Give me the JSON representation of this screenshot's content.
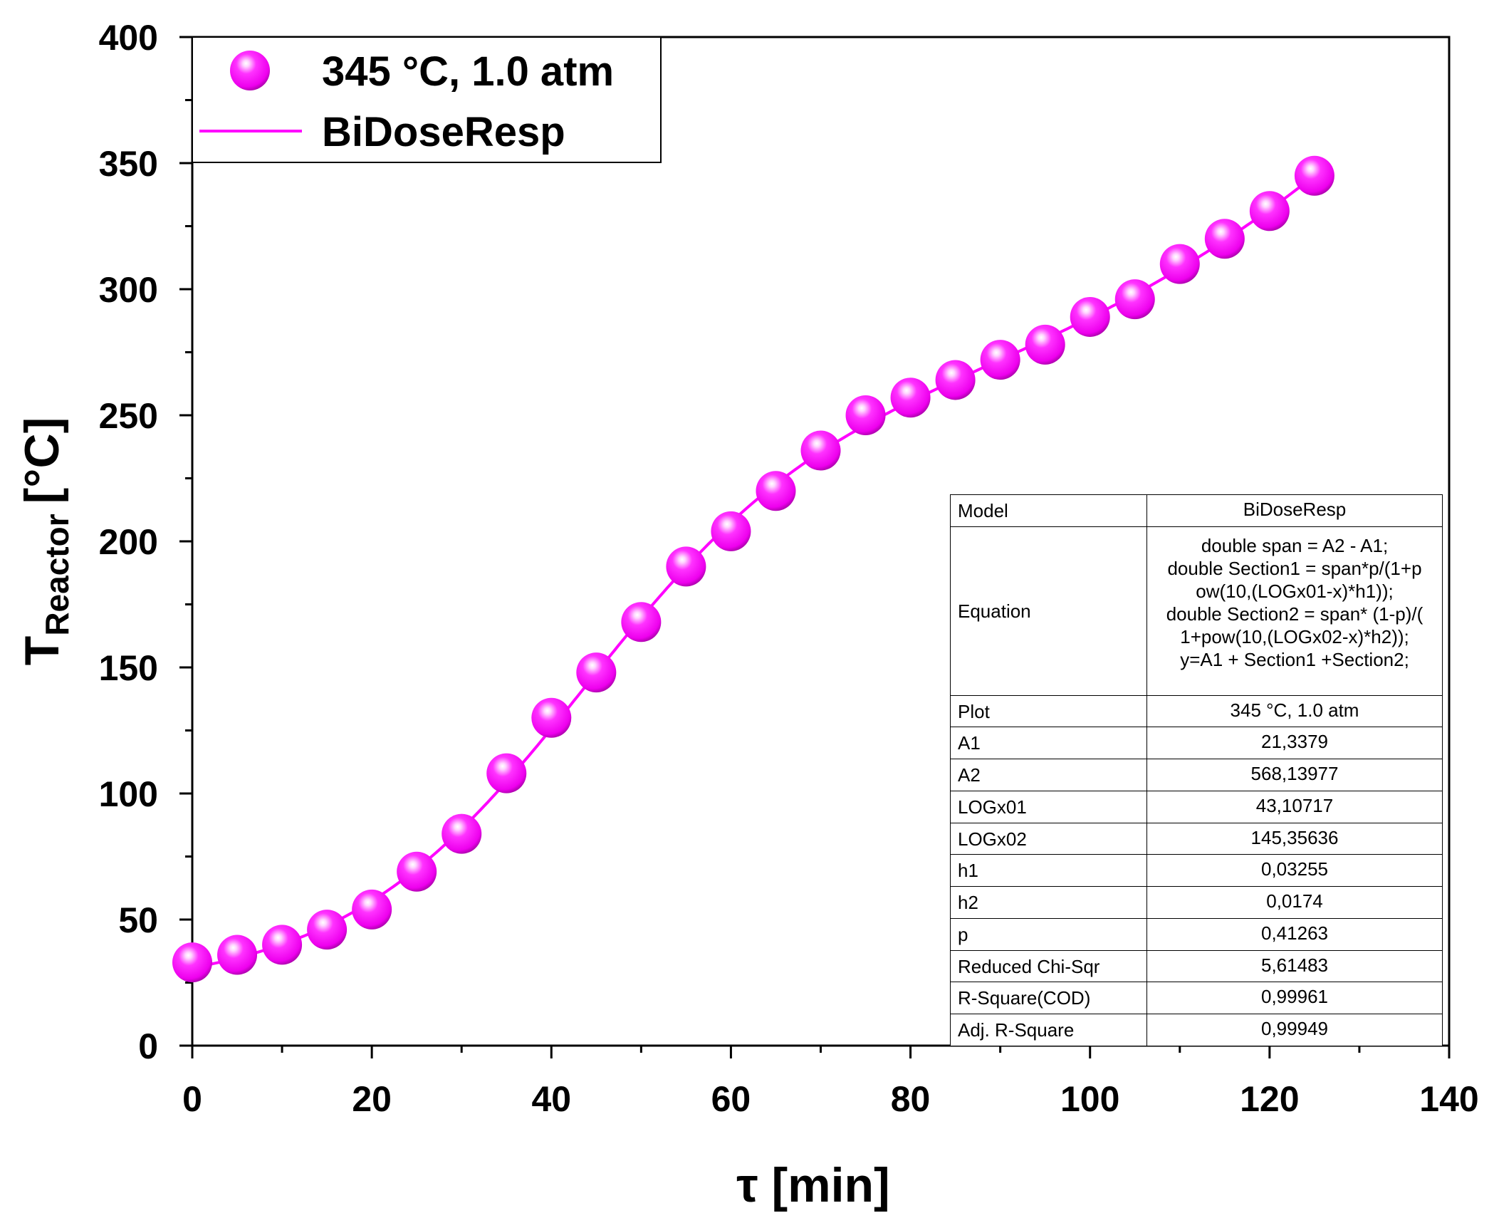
{
  "chart_data": {
    "type": "scatter",
    "title": "",
    "xlabel": "τ [min]",
    "ylabel_main": "T",
    "ylabel_sub": "Reactor",
    "ylabel_unit": "[°C]",
    "xlim": [
      0,
      140
    ],
    "ylim": [
      0,
      400
    ],
    "x_ticks": [
      0,
      20,
      40,
      60,
      80,
      100,
      120,
      140
    ],
    "x_tick_labels": [
      "0",
      "20",
      "40",
      "60",
      "80",
      "100",
      "120",
      "140"
    ],
    "y_ticks": [
      0,
      50,
      100,
      150,
      200,
      250,
      300,
      350,
      400
    ],
    "y_tick_labels": [
      "0",
      "50",
      "100",
      "150",
      "200",
      "250",
      "300",
      "350",
      "400"
    ],
    "grid": false,
    "legend_position": "top-left",
    "series": [
      {
        "name": "345 °C, 1.0 atm",
        "kind": "markers",
        "color": "#ff00ff",
        "x": [
          0,
          5,
          10,
          15,
          20,
          25,
          30,
          35,
          40,
          45,
          50,
          55,
          60,
          65,
          70,
          75,
          80,
          85,
          90,
          95,
          100,
          105,
          110,
          115,
          120,
          125
        ],
        "y": [
          33,
          36,
          40,
          46,
          54,
          69,
          84,
          108,
          130,
          148,
          168,
          190,
          204,
          220,
          236,
          250,
          257,
          264,
          272,
          278,
          289,
          296,
          310,
          320,
          331,
          345
        ]
      },
      {
        "name": "BiDoseResp",
        "kind": "line",
        "color": "#ff00ff"
      }
    ],
    "fit_params": {
      "A1": 21.3379,
      "A2": 568.13977,
      "LOGx01": 43.10717,
      "LOGx02": 145.35636,
      "h1": 0.03255,
      "h2": 0.0174,
      "p": 0.41263
    }
  },
  "table": {
    "model_label": "Model",
    "model_value": "BiDoseResp",
    "equation_label": "Equation",
    "equation_lines": [
      "double span = A2 - A1;",
      "double Section1 = span*p/(1+p",
      "ow(10,(LOGx01-x)*h1));",
      "double Section2 = span* (1-p)/(",
      "1+pow(10,(LOGx02-x)*h2));",
      "y=A1 + Section1 +Section2;"
    ],
    "rows": [
      {
        "label": "Plot",
        "value": "345 °C, 1.0 atm"
      },
      {
        "label": "A1",
        "value": "21,3379"
      },
      {
        "label": "A2",
        "value": "568,13977"
      },
      {
        "label": "LOGx01",
        "value": "43,10717"
      },
      {
        "label": "LOGx02",
        "value": "145,35636"
      },
      {
        "label": "h1",
        "value": "0,03255"
      },
      {
        "label": "h2",
        "value": "0,0174"
      },
      {
        "label": "p",
        "value": "0,41263"
      },
      {
        "label": "Reduced Chi-Sqr",
        "value": "5,61483"
      },
      {
        "label": "R-Square(COD)",
        "value": "0,99961"
      },
      {
        "label": "Adj. R-Square",
        "value": "0,99949"
      }
    ]
  }
}
